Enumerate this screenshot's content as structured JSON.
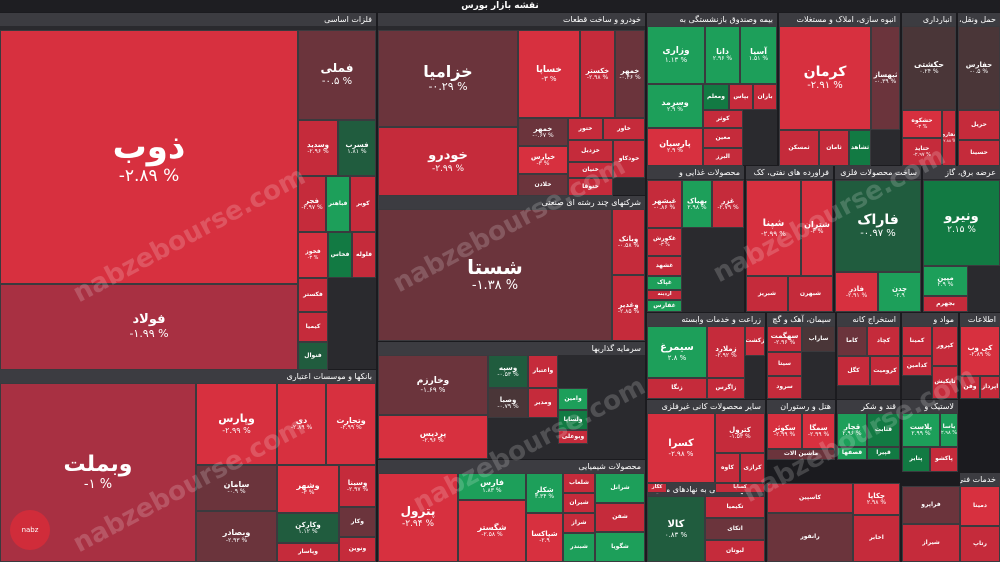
{
  "title": "نقشه بازار بورس",
  "watermark": "nabzebourse.com",
  "logo_text": "nabz",
  "sections": [
    {
      "key": "metals",
      "label": "فلزات اساسی"
    },
    {
      "key": "auto",
      "label": "خودرو و ساخت قطعات"
    },
    {
      "key": "insurance",
      "label": "بیمه وصندوق بازنشستگی به"
    },
    {
      "key": "realestate",
      "label": "انبوه سازی، املاک و مستغلات"
    },
    {
      "key": "storage",
      "label": "انبارداری"
    },
    {
      "key": "transport",
      "label": "حمل ونقل، انبارداری"
    },
    {
      "key": "multi",
      "label": "شرکتهای چند رشته ای صنعتی"
    },
    {
      "key": "food",
      "label": "محصولات غذایی و"
    },
    {
      "key": "refinery",
      "label": "فراورده های نفتی، کک"
    },
    {
      "key": "metalprod",
      "label": "ساخت محصولات فلزی"
    },
    {
      "key": "electric",
      "label": "عرضه برق، گاز"
    },
    {
      "key": "banks",
      "label": "بانکها و موسسات اعتباری"
    },
    {
      "key": "investment",
      "label": "سرمایه گذاریها"
    },
    {
      "key": "agri",
      "label": "زراعت و خدمات وابسته"
    },
    {
      "key": "cement",
      "label": "سیمان، آهک و گچ"
    },
    {
      "key": "mining",
      "label": "استخراج کانه"
    },
    {
      "key": "materials",
      "label": "مواد و"
    },
    {
      "key": "other",
      "label": "اطلاعات"
    },
    {
      "key": "chemical",
      "label": "محصولات شیمیایی"
    },
    {
      "key": "nonmetal",
      "label": "سایر محصولات کانی غیرفلزی"
    },
    {
      "key": "hotel",
      "label": "هتل و رستوران"
    },
    {
      "key": "sugar",
      "label": "قند و شکر"
    },
    {
      "key": "plastic",
      "label": "لاستیک و"
    },
    {
      "key": "financial",
      "label": "فعالیتهای کمکی به نهادهای مالی"
    },
    {
      "key": "tech",
      "label": "خدمات فنی و"
    }
  ],
  "cells": [
    {
      "n": "ذوب",
      "p": "-۲.۸۹ %"
    },
    {
      "n": "فملی",
      "p": "-۰.۵ %"
    },
    {
      "n": "فولاد",
      "p": "-۱.۹۹ %"
    },
    {
      "n": "وسدید",
      "p": "-۲.۹۶ %"
    },
    {
      "n": "فسرب",
      "p": "۱.۸۱ %"
    },
    {
      "n": "فجر",
      "p": "-۲.۹۷ %"
    },
    {
      "n": "فباهنر",
      "p": ""
    },
    {
      "n": "کویر",
      "p": ""
    },
    {
      "n": "فخوز",
      "p": "-۳ %"
    },
    {
      "n": "فخاس",
      "p": ""
    },
    {
      "n": "فلوله",
      "p": ""
    },
    {
      "n": "فکستر",
      "p": ""
    },
    {
      "n": "کیمیا",
      "p": ""
    },
    {
      "n": "فنوال",
      "p": ""
    },
    {
      "n": "خزامیا",
      "p": "-۰.۲۹ %"
    },
    {
      "n": "خساپا",
      "p": "-۳ %"
    },
    {
      "n": "خکستر",
      "p": "-۲.۹۸ %"
    },
    {
      "n": "خمهر",
      "p": "-۰.۴۶ %"
    },
    {
      "n": "خودرو",
      "p": "-۲.۹۹ %"
    },
    {
      "n": "خمهر",
      "p": "-۰.۶۷ %"
    },
    {
      "n": "ختور",
      "p": ""
    },
    {
      "n": "خاور",
      "p": ""
    },
    {
      "n": "خپارس",
      "p": "-۳ %"
    },
    {
      "n": "خزدیل",
      "p": ""
    },
    {
      "n": "خنیان",
      "p": ""
    },
    {
      "n": "خودکاو",
      "p": ""
    },
    {
      "n": "خلادن",
      "p": ""
    },
    {
      "n": "ختوقا",
      "p": ""
    },
    {
      "n": "وزاری",
      "p": "۱.۱۳ %"
    },
    {
      "n": "دانا",
      "p": "۲.۹۶ %"
    },
    {
      "n": "آسیا",
      "p": "۱.۵۱ %"
    },
    {
      "n": "وسرمد",
      "p": "۲.۹ %"
    },
    {
      "n": "ومعلم",
      "p": ""
    },
    {
      "n": "بپاس",
      "p": ""
    },
    {
      "n": "باران",
      "p": ""
    },
    {
      "n": "کوثر",
      "p": ""
    },
    {
      "n": "پارسیان",
      "p": "۲.۹ %"
    },
    {
      "n": "معین",
      "p": ""
    },
    {
      "n": "البرز",
      "p": ""
    },
    {
      "n": "کرمان",
      "p": "-۲.۹۱ %"
    },
    {
      "n": "ثبهساز",
      "p": "-۰.۳۹ %"
    },
    {
      "n": "ثمسکن",
      "p": ""
    },
    {
      "n": "ثامان",
      "p": ""
    },
    {
      "n": "ثشاهد",
      "p": ""
    },
    {
      "n": "حکشتی",
      "p": "۰.۲۴ %"
    },
    {
      "n": "حفارس",
      "p": "-۰.۵ %"
    },
    {
      "n": "حشکوه",
      "p": "-۳ %"
    },
    {
      "n": "حتاید",
      "p": "-۲.۹۷ %"
    },
    {
      "n": "حفاری",
      "p": "-۲.۸۸ %"
    },
    {
      "n": "حریل",
      "p": ""
    },
    {
      "n": "حسینا",
      "p": ""
    },
    {
      "n": "شستا",
      "p": "-۱.۳۸ %"
    },
    {
      "n": "وبانک",
      "p": "-۰.۵۸ %"
    },
    {
      "n": "وغدیر",
      "p": "-۲.۸۵ %"
    },
    {
      "n": "غبشهر",
      "p": "-۰.۸۶ %"
    },
    {
      "n": "بهپاک",
      "p": "۲.۹۸ %"
    },
    {
      "n": "غزر",
      "p": "-۲.۷۹ %"
    },
    {
      "n": "غکورش",
      "p": "-۳ %"
    },
    {
      "n": "غشهد",
      "p": ""
    },
    {
      "n": "غپاک",
      "p": ""
    },
    {
      "n": "آردینه",
      "p": ""
    },
    {
      "n": "غفارس",
      "p": ""
    },
    {
      "n": "شپنا",
      "p": "-۲.۹۹ %"
    },
    {
      "n": "شتران",
      "p": "-۳ %"
    },
    {
      "n": "شبریز",
      "p": ""
    },
    {
      "n": "شبهرن",
      "p": ""
    },
    {
      "n": "فاراک",
      "p": "-۰.۹۷ %"
    },
    {
      "n": "فاذر",
      "p": "-۲.۹۱ %"
    },
    {
      "n": "چدن",
      "p": "-۲.۹"
    },
    {
      "n": "ونیرو",
      "p": "۲.۱۵ %"
    },
    {
      "n": "مپین",
      "p": "۲.۹ %"
    },
    {
      "n": "بجهرم",
      "p": ""
    },
    {
      "n": "وبملت",
      "p": "-۱ %"
    },
    {
      "n": "وپارس",
      "p": "-۲.۹۹ %"
    },
    {
      "n": "وتجارت",
      "p": "-۲.۹۹ %"
    },
    {
      "n": "دی",
      "p": "-۲.۸۹ %"
    },
    {
      "n": "سامان",
      "p": "-۰.۹ %"
    },
    {
      "n": "وشهر",
      "p": "-۳ %"
    },
    {
      "n": "وسینا",
      "p": "-۲.۹۷ %"
    },
    {
      "n": "وبصادر",
      "p": "-۲.۹۳ %"
    },
    {
      "n": "وکارکن",
      "p": "۱.۱۲ %"
    },
    {
      "n": "وکار",
      "p": ""
    },
    {
      "n": "ونوین",
      "p": ""
    },
    {
      "n": "وپاسار",
      "p": ""
    },
    {
      "n": "وخارزم",
      "p": "-۱.۶۹ %"
    },
    {
      "n": "وسپه",
      "p": "-۰.۵۳ %"
    },
    {
      "n": "واعتبار",
      "p": ""
    },
    {
      "n": "وصبا",
      "p": "-۰.۷۹ %"
    },
    {
      "n": "ومدیر",
      "p": ""
    },
    {
      "n": "پردیس",
      "p": "-۲.۹۶ %"
    },
    {
      "n": "وامین",
      "p": ""
    },
    {
      "n": "ولساپا",
      "p": ""
    },
    {
      "n": "وبوعلی",
      "p": ""
    },
    {
      "n": "سیمرغ",
      "p": "۲.۸ %"
    },
    {
      "n": "زملارد",
      "p": "-۲.۹۲ %"
    },
    {
      "n": "زکشت",
      "p": ""
    },
    {
      "n": "زاگرس",
      "p": ""
    },
    {
      "n": "زنگا",
      "p": ""
    },
    {
      "n": "سهگمت",
      "p": "-۲.۹۶ %"
    },
    {
      "n": "ساراب",
      "p": ""
    },
    {
      "n": "سیتا",
      "p": ""
    },
    {
      "n": "سرود",
      "p": ""
    },
    {
      "n": "کاما",
      "p": ""
    },
    {
      "n": "کچاد",
      "p": ""
    },
    {
      "n": "کگل",
      "p": ""
    },
    {
      "n": "کرومیت",
      "p": ""
    },
    {
      "n": "کمینا",
      "p": ""
    },
    {
      "n": "کدامین",
      "p": ""
    },
    {
      "n": "کپرور",
      "p": ""
    },
    {
      "n": "تاپکیش",
      "p": ""
    },
    {
      "n": "کی وب",
      "p": "-۲.۸۹ %"
    },
    {
      "n": "وفن",
      "p": ""
    },
    {
      "n": "اپرداز",
      "p": ""
    },
    {
      "n": "پترول",
      "p": "-۲.۹۴ %"
    },
    {
      "n": "شگستر",
      "p": "-۲.۵۸ %"
    },
    {
      "n": "فارس",
      "p": "۱.۸۳ %"
    },
    {
      "n": "شکلر",
      "p": "۳.۳۴ %"
    },
    {
      "n": "شلعاب",
      "p": ""
    },
    {
      "n": "شیران",
      "p": ""
    },
    {
      "n": "شپاکسا",
      "p": "-۲.۹"
    },
    {
      "n": "شراز",
      "p": ""
    },
    {
      "n": "شرانل",
      "p": ""
    },
    {
      "n": "شفن",
      "p": ""
    },
    {
      "n": "شگویا",
      "p": ""
    },
    {
      "n": "شبندر",
      "p": ""
    },
    {
      "n": "کسرا",
      "p": "-۲.۹۸ %"
    },
    {
      "n": "کترول",
      "p": "-۱.۵۳ %"
    },
    {
      "n": "کاوه",
      "p": ""
    },
    {
      "n": "کرازی",
      "p": ""
    },
    {
      "n": "کساپا",
      "p": ""
    },
    {
      "n": "کگاز",
      "p": ""
    },
    {
      "n": "سکوثر",
      "p": "-۲.۹۹ %"
    },
    {
      "n": "سمگا",
      "p": "-۲.۹۹ %"
    },
    {
      "n": "ماشین الات",
      "p": ""
    },
    {
      "n": "قچار",
      "p": "۲.۹۶ %"
    },
    {
      "n": "قثابت",
      "p": ""
    },
    {
      "n": "قصفها",
      "p": ""
    },
    {
      "n": "قپیرا",
      "p": ""
    },
    {
      "n": "پلاست",
      "p": "۲.۹۹ %"
    },
    {
      "n": "یاسا",
      "p": "۲.۹۸ %"
    },
    {
      "n": "پتایر",
      "p": ""
    },
    {
      "n": "پاکشو",
      "p": ""
    },
    {
      "n": "کالا",
      "p": "۰.۸۳ %"
    },
    {
      "n": "تکیمیا",
      "p": ""
    },
    {
      "n": "اتکای",
      "p": ""
    },
    {
      "n": "لبوتان",
      "p": ""
    },
    {
      "n": "چکاپا",
      "p": "۲.۹۸ %"
    },
    {
      "n": "رانفور",
      "p": ""
    },
    {
      "n": "دمینا",
      "p": ""
    },
    {
      "n": "اخابر",
      "p": ""
    },
    {
      "n": "فراپرو",
      "p": ""
    },
    {
      "n": "شیراز",
      "p": ""
    },
    {
      "n": "کاسپین",
      "p": ""
    },
    {
      "n": "رتاپ",
      "p": ""
    }
  ]
}
